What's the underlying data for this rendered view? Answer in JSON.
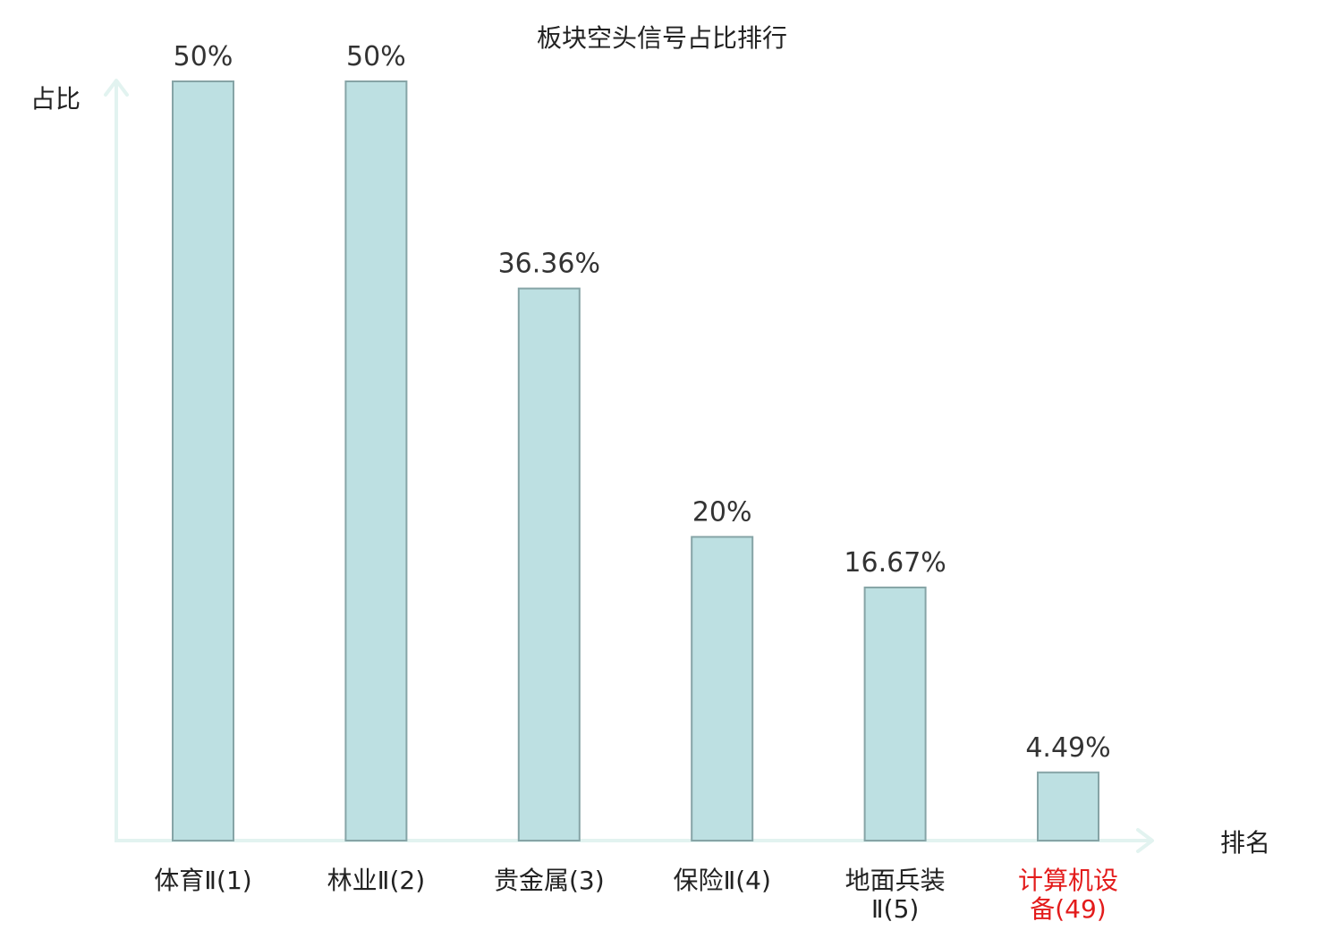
{
  "chart_data": {
    "type": "bar",
    "title": "板块空头信号占比排行",
    "xlabel": "排名",
    "ylabel": "占比",
    "categories": [
      [
        "体育Ⅱ(1)"
      ],
      [
        "林业Ⅱ(2)"
      ],
      [
        "贵金属(3)"
      ],
      [
        "保险Ⅱ(4)"
      ],
      [
        "地面兵装",
        "Ⅱ(5)"
      ],
      [
        "计算机设",
        "备(49)"
      ]
    ],
    "values": [
      50,
      50,
      36.36,
      20,
      16.67,
      4.49
    ],
    "value_labels": [
      "50%",
      "50%",
      "36.36%",
      "20%",
      "16.67%",
      "4.49%"
    ],
    "highlight_index": 5,
    "ylim": [
      0,
      50
    ],
    "grid": false
  },
  "colors": {
    "bar_fill": "#bde0e2",
    "bar_stroke": "#86a4a6",
    "axis": "#e2f3f0",
    "text": "#333333",
    "highlight": "#e31b1b"
  }
}
